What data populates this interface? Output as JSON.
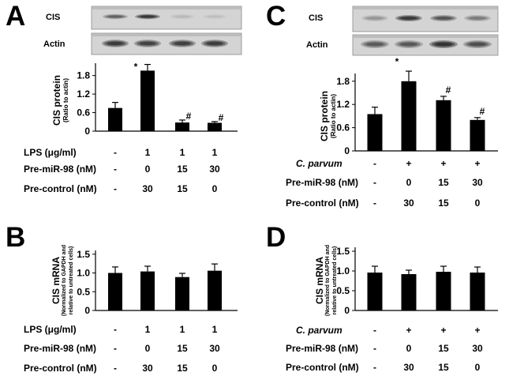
{
  "chart_data": [
    {
      "letter": "A",
      "type": "bar",
      "blot": [
        "CIS",
        "Actin"
      ],
      "ylabel": "CIS protein",
      "ylabel_sub": [
        "(Ratio to actin)"
      ],
      "ylim": [
        0,
        2.2
      ],
      "yticks": [
        0,
        0.6,
        1.2,
        1.8
      ],
      "ytick_labels": [
        "0",
        "0.6",
        "1.2",
        "1.8"
      ],
      "grid": false,
      "bar_color": "#000000",
      "values": [
        0.75,
        1.96,
        0.28,
        0.27
      ],
      "errors": [
        0.18,
        0.2,
        0.08,
        0.04
      ],
      "annotations": [
        "",
        "*",
        "#",
        "#"
      ],
      "conditions": [
        {
          "label": "LPS (μg/ml)",
          "values": [
            "-",
            "1",
            "1",
            "1"
          ]
        },
        {
          "label": "Pre-miR-98 (nM)",
          "values": [
            "-",
            "0",
            "15",
            "30"
          ]
        },
        {
          "label": "Pre-control (nM)",
          "values": [
            "-",
            "30",
            "15",
            "0"
          ]
        }
      ]
    },
    {
      "letter": "B",
      "type": "bar",
      "ylabel": "CIS mRNA",
      "ylabel_sub": [
        "(Normalized to GAPDH and",
        "relative to untreated cells)"
      ],
      "ylim": [
        0,
        1.6
      ],
      "yticks": [
        0,
        0.5,
        1.0,
        1.5
      ],
      "ytick_labels": [
        "0",
        "0.5",
        "1.0",
        "1.5"
      ],
      "grid": false,
      "bar_color": "#000000",
      "values": [
        1.0,
        1.04,
        0.89,
        1.06
      ],
      "errors": [
        0.16,
        0.14,
        0.1,
        0.18
      ],
      "annotations": [
        "",
        "",
        "",
        ""
      ],
      "conditions": [
        {
          "label": "LPS (μg/ml)",
          "values": [
            "-",
            "1",
            "1",
            "1"
          ]
        },
        {
          "label": "Pre-miR-98 (nM)",
          "values": [
            "-",
            "0",
            "15",
            "30"
          ]
        },
        {
          "label": "Pre-control (nM)",
          "values": [
            "-",
            "30",
            "15",
            "0"
          ]
        }
      ]
    },
    {
      "letter": "C",
      "type": "bar",
      "blot": [
        "CIS",
        "Actin"
      ],
      "ylabel": "CIS protein",
      "ylabel_sub": [
        "(Ratio to actin)"
      ],
      "ylim": [
        0,
        2.0
      ],
      "yticks": [
        0,
        0.6,
        1.2,
        1.8
      ],
      "ytick_labels": [
        "0",
        "0.6",
        "1.2",
        "1.8"
      ],
      "grid": false,
      "bar_color": "#000000",
      "values": [
        0.95,
        1.8,
        1.31,
        0.8
      ],
      "errors": [
        0.18,
        0.26,
        0.1,
        0.06
      ],
      "annotations": [
        "",
        "*",
        "#",
        "#"
      ],
      "conditions": [
        {
          "label": "C. parvum",
          "values": [
            "-",
            "+",
            "+",
            "+"
          ]
        },
        {
          "label": "Pre-miR-98 (nM)",
          "values": [
            "-",
            "0",
            "15",
            "30"
          ]
        },
        {
          "label": "Pre-control (nM)",
          "values": [
            "-",
            "30",
            "15",
            "0"
          ]
        }
      ]
    },
    {
      "letter": "D",
      "type": "bar",
      "ylabel": "CIS mRNA",
      "ylabel_sub": [
        "(Normalized to GAPDH and",
        "relative to untreated cells)"
      ],
      "ylim": [
        0,
        1.6
      ],
      "yticks": [
        0,
        0.5,
        1.0,
        1.5
      ],
      "ytick_labels": [
        "0",
        "0.5",
        "1.0",
        "1.5"
      ],
      "grid": false,
      "bar_color": "#000000",
      "values": [
        0.96,
        0.92,
        0.98,
        0.96
      ],
      "errors": [
        0.16,
        0.1,
        0.14,
        0.14
      ],
      "annotations": [
        "",
        "",
        "",
        ""
      ],
      "conditions": [
        {
          "label": "C. parvum",
          "values": [
            "-",
            "+",
            "+",
            "+"
          ]
        },
        {
          "label": "Pre-miR-98 (nM)",
          "values": [
            "-",
            "0",
            "15",
            "30"
          ]
        },
        {
          "label": "Pre-control (nM)",
          "values": [
            "-",
            "30",
            "15",
            "0"
          ]
        }
      ]
    }
  ]
}
